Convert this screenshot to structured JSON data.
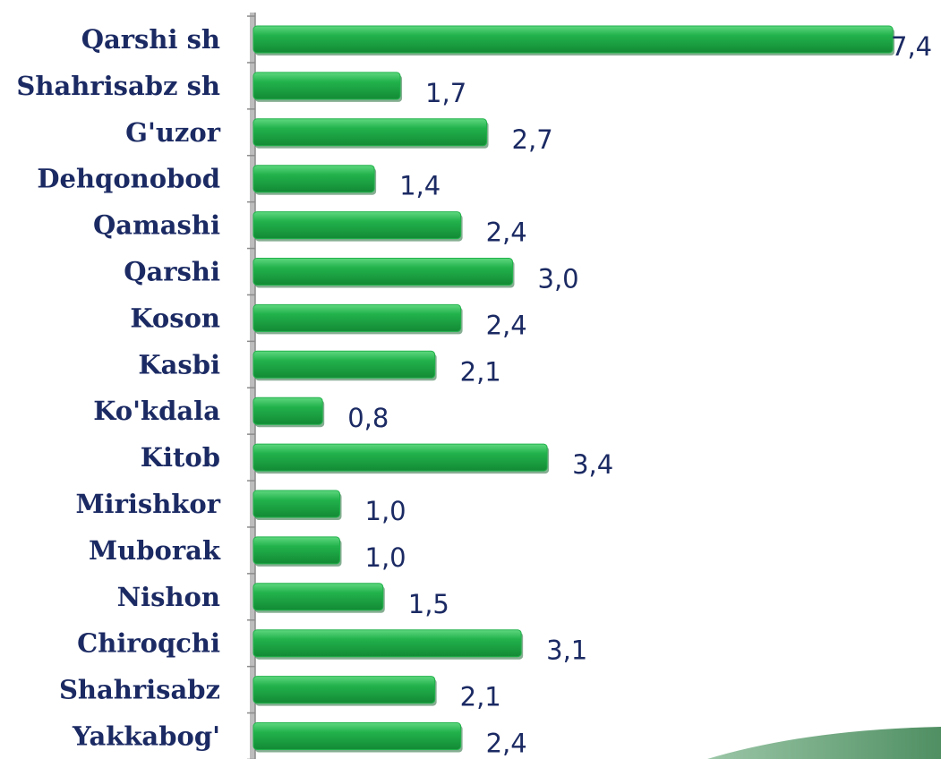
{
  "chart_data": {
    "type": "barh",
    "categories": [
      "Qarshi sh",
      "Shahrisabz sh",
      "G'uzor",
      "Dehqonobod",
      "Qamashi",
      "Qarshi ",
      "Koson",
      "Kasbi",
      "Ko'kdala",
      "Kitob",
      "Mirishkor",
      "Muborak",
      "Nishon",
      "Chiroqchi",
      "Shahrisabz",
      "Yakkabog'"
    ],
    "values": [
      7.4,
      1.7,
      2.7,
      1.4,
      2.4,
      3.0,
      2.4,
      2.1,
      0.8,
      3.4,
      1.0,
      1.0,
      1.5,
      3.1,
      2.1,
      2.4
    ],
    "value_labels": [
      "7,4",
      "1,7",
      "2,7",
      "1,4",
      "2,4",
      "3,0",
      "2,4",
      "2,1",
      "0,8",
      "3,4",
      "1,0",
      "1,0",
      "1,5",
      "3,1",
      "2,1",
      "2,4"
    ],
    "color": "#22b24c",
    "xlim": [
      0,
      7.5
    ]
  }
}
